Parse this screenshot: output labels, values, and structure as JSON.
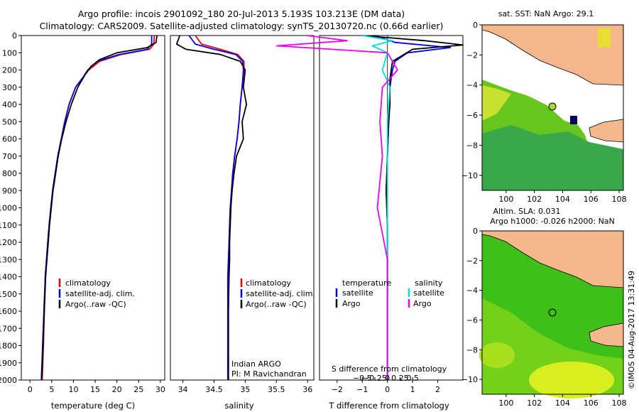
{
  "header": {
    "line1": "Argo profile: incois 2901092_180 20-Jul-2013 5.193S 103.213E (DM data)",
    "line2": "Climatology: CARS2009. Satellite-adjusted climatology: synTS_20130720.nc (0.66d earlier)"
  },
  "colors": {
    "climatology": "#ee0000",
    "satellite": "#0000ee",
    "argo": "#000000",
    "sat_salinity": "#00dddd",
    "argo_salinity": "#ee00ee",
    "land": "#f5b88c",
    "ocean_sst": "#66c61e",
    "ocean_sla": "#3fbf1a"
  },
  "chart_data": [
    {
      "type": "line",
      "xlabel": "temperature (deg C)",
      "ylabel": "",
      "xlim": [
        -2,
        31
      ],
      "ylim": [
        2000,
        0
      ],
      "xticks": [
        0,
        5,
        10,
        15,
        20,
        25,
        30
      ],
      "yticks": [
        0,
        100,
        200,
        300,
        400,
        500,
        600,
        700,
        800,
        900,
        1000,
        1100,
        1200,
        1300,
        1400,
        1500,
        1600,
        1700,
        1800,
        1900,
        2000
      ],
      "legend": [
        "climatology",
        "satellite-adj. clim.",
        "Argo(..raw -QC)"
      ],
      "legend_position": "bottom-right",
      "series": [
        {
          "name": "climatology",
          "x": [
            28.6,
            28.5,
            27.5,
            21,
            16,
            13.5,
            12,
            10.5,
            9,
            8,
            7.2,
            6.4,
            5.8,
            5.2,
            4.8,
            4.4,
            4.1,
            3.8,
            3.5,
            3.3,
            3.1,
            2.8
          ],
          "y": [
            0,
            50,
            80,
            110,
            150,
            200,
            250,
            300,
            400,
            500,
            600,
            700,
            800,
            900,
            1000,
            1100,
            1200,
            1300,
            1400,
            1600,
            1800,
            2000
          ]
        },
        {
          "name": "satellite-adj. clim.",
          "x": [
            28,
            28,
            27,
            20.5,
            15.5,
            13.3,
            12,
            10.5,
            9,
            8,
            7.2,
            6.4,
            5.8,
            5.2,
            4.8,
            4.4,
            4.1,
            3.8,
            3.5,
            3.2,
            2.9,
            2.6
          ],
          "y": [
            0,
            50,
            80,
            110,
            150,
            200,
            250,
            300,
            400,
            500,
            600,
            700,
            800,
            900,
            1000,
            1100,
            1200,
            1300,
            1400,
            1600,
            1800,
            2000
          ]
        },
        {
          "name": "Argo(..raw -QC)",
          "x": [
            29.2,
            29,
            27,
            20,
            16,
            14,
            12.6,
            11,
            9.5,
            8.3,
            7.3,
            6.5,
            5.9,
            5.3,
            4.9,
            4.5,
            4.2,
            3.9,
            3.6,
            3.3,
            3.0,
            2.7
          ],
          "y": [
            0,
            40,
            70,
            100,
            140,
            180,
            230,
            300,
            400,
            500,
            600,
            700,
            800,
            900,
            1000,
            1100,
            1200,
            1300,
            1400,
            1600,
            1800,
            2000
          ]
        }
      ]
    },
    {
      "type": "line",
      "xlabel": "salinity",
      "ylabel": "",
      "xlim": [
        33.8,
        36.1
      ],
      "ylim": [
        2000,
        0
      ],
      "xticks": [
        34,
        34.5,
        35,
        35.5,
        36
      ],
      "xticklabels": [
        "34",
        "34.5",
        "35",
        "35.5",
        "36"
      ],
      "legend": [
        "climatology",
        "satellite-adj. clim.",
        "Argo(..raw -QC)"
      ],
      "legend_position": "bottom-right",
      "annotations": [
        "Indian ARGO",
        "PI: M Ravichandran"
      ],
      "series": [
        {
          "name": "climatology",
          "x": [
            34.2,
            34.3,
            34.6,
            34.88,
            34.98,
            34.98,
            34.95,
            34.92,
            34.9,
            34.87,
            34.83,
            34.8,
            34.78,
            34.76,
            34.75,
            34.74,
            34.74,
            34.73,
            34.73,
            34.73
          ],
          "y": [
            0,
            50,
            80,
            110,
            150,
            200,
            300,
            400,
            500,
            600,
            700,
            800,
            900,
            1000,
            1100,
            1200,
            1300,
            1400,
            1600,
            2000
          ]
        },
        {
          "name": "satellite-adj. clim.",
          "x": [
            34.1,
            34.2,
            34.5,
            34.85,
            34.96,
            34.97,
            34.95,
            34.92,
            34.9,
            34.87,
            34.83,
            34.8,
            34.78,
            34.76,
            34.75,
            34.74,
            34.73,
            34.72,
            34.72,
            34.72
          ],
          "y": [
            0,
            50,
            80,
            110,
            150,
            200,
            300,
            400,
            500,
            600,
            700,
            800,
            900,
            1000,
            1100,
            1200,
            1300,
            1400,
            1600,
            2000
          ]
        },
        {
          "name": "Argo(..raw -QC)",
          "x": [
            33.95,
            33.9,
            34.05,
            34.6,
            34.92,
            35.0,
            34.97,
            35.02,
            34.95,
            34.97,
            34.86,
            34.82,
            34.79,
            34.77,
            34.76,
            34.75,
            34.75,
            34.74,
            34.73,
            34.73
          ],
          "y": [
            0,
            50,
            80,
            110,
            150,
            200,
            300,
            400,
            500,
            600,
            700,
            800,
            900,
            1000,
            1100,
            1200,
            1300,
            1400,
            1600,
            2000
          ]
        }
      ]
    },
    {
      "type": "line",
      "xlabel": "T difference from climatology",
      "x2label": "S difference from climatology",
      "xlim": [
        -2.7,
        3.0
      ],
      "ylim": [
        2000,
        0
      ],
      "xticks": [
        -2,
        -1,
        0,
        1,
        2
      ],
      "xticklabels": [
        "−2",
        "−1",
        "0",
        "1",
        "2"
      ],
      "x2ticks": [
        -0.5,
        -0.25,
        0,
        0.25,
        0.5
      ],
      "x2ticklabels": [
        "−0.5",
        "−0.25",
        "0",
        "0.25",
        "0.5"
      ],
      "legend_headers": [
        "temperature",
        "salinity"
      ],
      "legend": [
        "satellite",
        "Argo",
        "satellite",
        "Argo"
      ],
      "legend_position": "bottom",
      "series": [
        {
          "name": "temperature satellite",
          "x": [
            -0.5,
            0.3,
            2.5,
            0.8,
            0.3,
            0.2,
            0.1,
            0.05,
            0,
            -0.05,
            0,
            0,
            0,
            0
          ],
          "y": [
            0,
            40,
            70,
            100,
            150,
            200,
            300,
            500,
            700,
            900,
            1100,
            1400,
            1700,
            2000
          ]
        },
        {
          "name": "temperature Argo",
          "x": [
            -1.0,
            1.5,
            3.0,
            1.0,
            0.2,
            0.1,
            0.1,
            0.05,
            0,
            -0.05,
            0,
            0,
            0,
            0
          ],
          "y": [
            0,
            30,
            55,
            80,
            150,
            250,
            400,
            500,
            700,
            900,
            1100,
            1400,
            1700,
            2000
          ]
        },
        {
          "name": "salinity satellite",
          "x": [
            -0.5,
            0.1,
            -0.3,
            0,
            -0.1,
            0.05,
            0,
            0,
            0,
            0,
            0,
            0
          ],
          "y": [
            0,
            30,
            60,
            100,
            200,
            300,
            500,
            700,
            1000,
            1300,
            1600,
            2000
          ]
        },
        {
          "name": "salinity Argo",
          "x": [
            -1.6,
            -0.8,
            -2.2,
            0,
            0.2,
            -0.1,
            -0.15,
            -0.1,
            -0.2,
            0,
            0,
            0
          ],
          "y": [
            0,
            30,
            60,
            100,
            200,
            300,
            500,
            700,
            1000,
            1300,
            1600,
            2000
          ]
        }
      ]
    },
    {
      "type": "heatmap",
      "title": "sat. SST: NaN  Argo: 29.1",
      "xlim": [
        98.3,
        108.3
      ],
      "ylim": [
        -11,
        0
      ],
      "xticks": [
        100,
        102,
        104,
        106,
        108
      ],
      "yticks": [
        0,
        -2,
        -4,
        -6,
        -8,
        -10
      ],
      "yticklabels": [
        "0",
        "−2",
        "−4",
        "−6",
        "−8",
        "−10"
      ],
      "marker": {
        "lon": 103.213,
        "lat": -5.193
      }
    },
    {
      "type": "heatmap",
      "title": "Altim. SLA: 0.031",
      "subtitle": "Argo h1000: -0.026  h2000: NaN",
      "xlim": [
        98.3,
        108.3
      ],
      "ylim": [
        -11,
        0
      ],
      "xticks": [
        100,
        102,
        104,
        106,
        108
      ],
      "yticks": [
        0,
        -2,
        -4,
        -6,
        -8,
        -10
      ],
      "yticklabels": [
        "0",
        "−2",
        "−4",
        "−6",
        "−8",
        "−10"
      ],
      "marker": {
        "lon": 103.213,
        "lat": -5.193
      }
    }
  ],
  "stamp": "©IMOS 04-Aug-2017 13:31:49"
}
